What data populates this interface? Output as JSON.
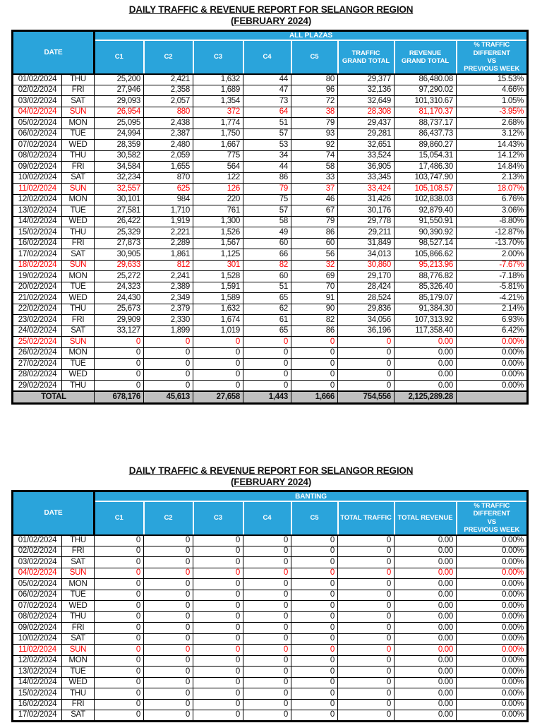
{
  "colors": {
    "header_blue": "#2AA4DB",
    "highlight_red": "#FF0000",
    "total_row_gray": "#C0C0C0"
  },
  "highlight_day": "SUN",
  "report1": {
    "title": "DAILY TRAFFIC & REVENUE REPORT FOR SELANGOR REGION",
    "subtitle": "(FEBRUARY 2024)",
    "date_header": "DATE",
    "group_header": "ALL PLAZAS",
    "columns": [
      "C1",
      "C2",
      "C3",
      "C4",
      "C5",
      "TRAFFIC\nGRAND TOTAL",
      "REVENUE\nGRAND TOTAL",
      "% TRAFFIC DIFFERENT\nVS\nPREVIOUS WEEK"
    ],
    "rows": [
      [
        "01/02/2024",
        "THU",
        "25,200",
        "2,421",
        "1,632",
        "44",
        "80",
        "29,377",
        "86,480.08",
        "15.53%"
      ],
      [
        "02/02/2024",
        "FRI",
        "27,946",
        "2,358",
        "1,689",
        "47",
        "96",
        "32,136",
        "97,290.02",
        "4.66%"
      ],
      [
        "03/02/2024",
        "SAT",
        "29,093",
        "2,057",
        "1,354",
        "73",
        "72",
        "32,649",
        "101,310.67",
        "1.05%"
      ],
      [
        "04/02/2024",
        "SUN",
        "26,954",
        "880",
        "372",
        "64",
        "38",
        "28,308",
        "81,170.37",
        "-3.95%"
      ],
      [
        "05/02/2024",
        "MON",
        "25,095",
        "2,438",
        "1,774",
        "51",
        "79",
        "29,437",
        "88,737.17",
        "2.68%"
      ],
      [
        "06/02/2024",
        "TUE",
        "24,994",
        "2,387",
        "1,750",
        "57",
        "93",
        "29,281",
        "86,437.73",
        "3.12%"
      ],
      [
        "07/02/2024",
        "WED",
        "28,359",
        "2,480",
        "1,667",
        "53",
        "92",
        "32,651",
        "89,860.27",
        "14.43%"
      ],
      [
        "08/02/2024",
        "THU",
        "30,582",
        "2,059",
        "775",
        "34",
        "74",
        "33,524",
        "15,054.31",
        "14.12%"
      ],
      [
        "09/02/2024",
        "FRI",
        "34,584",
        "1,655",
        "564",
        "44",
        "58",
        "36,905",
        "17,486.30",
        "14.84%"
      ],
      [
        "10/02/2024",
        "SAT",
        "32,234",
        "870",
        "122",
        "86",
        "33",
        "33,345",
        "103,747.90",
        "2.13%"
      ],
      [
        "11/02/2024",
        "SUN",
        "32,557",
        "625",
        "126",
        "79",
        "37",
        "33,424",
        "105,108.57",
        "18.07%"
      ],
      [
        "12/02/2024",
        "MON",
        "30,101",
        "984",
        "220",
        "75",
        "46",
        "31,426",
        "102,838.03",
        "6.76%"
      ],
      [
        "13/02/2024",
        "TUE",
        "27,581",
        "1,710",
        "761",
        "57",
        "67",
        "30,176",
        "92,879.40",
        "3.06%"
      ],
      [
        "14/02/2024",
        "WED",
        "26,422",
        "1,919",
        "1,300",
        "58",
        "79",
        "29,778",
        "91,550.91",
        "-8.80%"
      ],
      [
        "15/02/2024",
        "THU",
        "25,329",
        "2,221",
        "1,526",
        "49",
        "86",
        "29,211",
        "90,390.92",
        "-12.87%"
      ],
      [
        "16/02/2024",
        "FRI",
        "27,873",
        "2,289",
        "1,567",
        "60",
        "60",
        "31,849",
        "98,527.14",
        "-13.70%"
      ],
      [
        "17/02/2024",
        "SAT",
        "30,905",
        "1,861",
        "1,125",
        "66",
        "56",
        "34,013",
        "105,866.62",
        "2.00%"
      ],
      [
        "18/02/2024",
        "SUN",
        "29,633",
        "812",
        "301",
        "82",
        "32",
        "30,860",
        "95,213.96",
        "-7.67%"
      ],
      [
        "19/02/2024",
        "MON",
        "25,272",
        "2,241",
        "1,528",
        "60",
        "69",
        "29,170",
        "88,776.82",
        "-7.18%"
      ],
      [
        "20/02/2024",
        "TUE",
        "24,323",
        "2,389",
        "1,591",
        "51",
        "70",
        "28,424",
        "85,326.40",
        "-5.81%"
      ],
      [
        "21/02/2024",
        "WED",
        "24,430",
        "2,349",
        "1,589",
        "65",
        "91",
        "28,524",
        "85,179.07",
        "-4.21%"
      ],
      [
        "22/02/2024",
        "THU",
        "25,673",
        "2,379",
        "1,632",
        "62",
        "90",
        "29,836",
        "91,384.30",
        "2.14%"
      ],
      [
        "23/02/2024",
        "FRI",
        "29,909",
        "2,330",
        "1,674",
        "61",
        "82",
        "34,056",
        "107,313.92",
        "6.93%"
      ],
      [
        "24/02/2024",
        "SAT",
        "33,127",
        "1,899",
        "1,019",
        "65",
        "86",
        "36,196",
        "117,358.40",
        "6.42%"
      ],
      [
        "25/02/2024",
        "SUN",
        "0",
        "0",
        "0",
        "0",
        "0",
        "0",
        "0.00",
        "0.00%"
      ],
      [
        "26/02/2024",
        "MON",
        "0",
        "0",
        "0",
        "0",
        "0",
        "0",
        "0.00",
        "0.00%"
      ],
      [
        "27/02/2024",
        "TUE",
        "0",
        "0",
        "0",
        "0",
        "0",
        "0",
        "0.00",
        "0.00%"
      ],
      [
        "28/02/2024",
        "WED",
        "0",
        "0",
        "0",
        "0",
        "0",
        "0",
        "0.00",
        "0.00%"
      ],
      [
        "29/02/2024",
        "THU",
        "0",
        "0",
        "0",
        "0",
        "0",
        "0",
        "0.00",
        "0.00%"
      ]
    ],
    "total": [
      "TOTAL",
      "678,176",
      "45,613",
      "27,658",
      "1,443",
      "1,666",
      "754,556",
      "2,125,289.28",
      ""
    ]
  },
  "report2": {
    "title": "DAILY TRAFFIC & REVENUE REPORT FOR SELANGOR REGION",
    "subtitle": "(FEBRUARY 2024)",
    "date_header": "DATE",
    "group_header": "BANTING",
    "columns": [
      "C1",
      "C2",
      "C3",
      "C4",
      "C5",
      "TOTAL TRAFFIC",
      "TOTAL REVENUE",
      "% TRAFFIC DIFFERENT\nVS\nPREVIOUS WEEK"
    ],
    "rows": [
      [
        "01/02/2024",
        "THU",
        "0",
        "0",
        "0",
        "0",
        "0",
        "0",
        "0.00",
        "0.00%"
      ],
      [
        "02/02/2024",
        "FRI",
        "0",
        "0",
        "0",
        "0",
        "0",
        "0",
        "0.00",
        "0.00%"
      ],
      [
        "03/02/2024",
        "SAT",
        "0",
        "0",
        "0",
        "0",
        "0",
        "0",
        "0.00",
        "0.00%"
      ],
      [
        "04/02/2024",
        "SUN",
        "0",
        "0",
        "0",
        "0",
        "0",
        "0",
        "0.00",
        "0.00%"
      ],
      [
        "05/02/2024",
        "MON",
        "0",
        "0",
        "0",
        "0",
        "0",
        "0",
        "0.00",
        "0.00%"
      ],
      [
        "06/02/2024",
        "TUE",
        "0",
        "0",
        "0",
        "0",
        "0",
        "0",
        "0.00",
        "0.00%"
      ],
      [
        "07/02/2024",
        "WED",
        "0",
        "0",
        "0",
        "0",
        "0",
        "0",
        "0.00",
        "0.00%"
      ],
      [
        "08/02/2024",
        "THU",
        "0",
        "0",
        "0",
        "0",
        "0",
        "0",
        "0.00",
        "0.00%"
      ],
      [
        "09/02/2024",
        "FRI",
        "0",
        "0",
        "0",
        "0",
        "0",
        "0",
        "0.00",
        "0.00%"
      ],
      [
        "10/02/2024",
        "SAT",
        "0",
        "0",
        "0",
        "0",
        "0",
        "0",
        "0.00",
        "0.00%"
      ],
      [
        "11/02/2024",
        "SUN",
        "0",
        "0",
        "0",
        "0",
        "0",
        "0",
        "0.00",
        "0.00%"
      ],
      [
        "12/02/2024",
        "MON",
        "0",
        "0",
        "0",
        "0",
        "0",
        "0",
        "0.00",
        "0.00%"
      ],
      [
        "13/02/2024",
        "TUE",
        "0",
        "0",
        "0",
        "0",
        "0",
        "0",
        "0.00",
        "0.00%"
      ],
      [
        "14/02/2024",
        "WED",
        "0",
        "0",
        "0",
        "0",
        "0",
        "0",
        "0.00",
        "0.00%"
      ],
      [
        "15/02/2024",
        "THU",
        "0",
        "0",
        "0",
        "0",
        "0",
        "0",
        "0.00",
        "0.00%"
      ],
      [
        "16/02/2024",
        "FRI",
        "0",
        "0",
        "0",
        "0",
        "0",
        "0",
        "0.00",
        "0.00%"
      ],
      [
        "17/02/2024",
        "SAT",
        "0",
        "0",
        "0",
        "0",
        "0",
        "0",
        "0.00",
        "0.00%"
      ]
    ]
  }
}
